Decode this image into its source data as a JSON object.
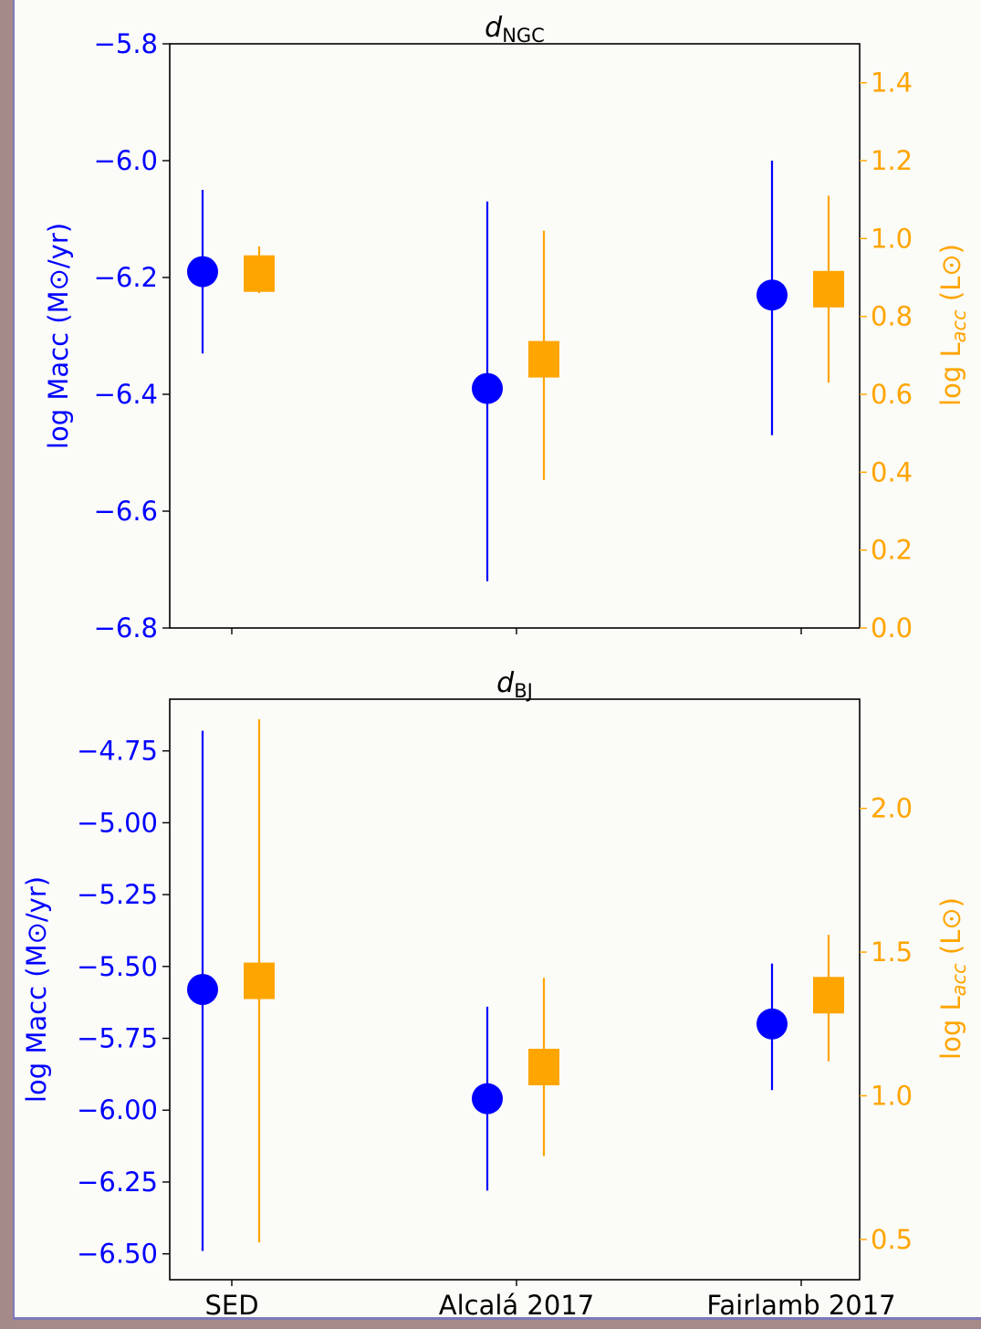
{
  "colors": {
    "macc": "#0000ff",
    "lacc": "#ffa500",
    "axis": "#000000"
  },
  "chart_data": [
    {
      "type": "scatter",
      "title_main": "d",
      "title_sub": "NGC",
      "categories": [
        "SED",
        "Alcalá 2017",
        "Fairlamb 2017"
      ],
      "left_axis": {
        "label": "log Macc (M⊙/yr)",
        "ylim": [
          -6.8,
          -5.8
        ],
        "ticks": [
          -6.8,
          -6.6,
          -6.4,
          -6.2,
          -6.0,
          -5.8
        ],
        "tick_labels": [
          "−6.8",
          "−6.6",
          "−6.4",
          "−6.2",
          "−6.0",
          "−5.8"
        ]
      },
      "right_axis": {
        "label_main": "log L",
        "label_sub": "acc",
        "label_tail": " (L⊙)",
        "ylim": [
          0.0,
          1.5
        ],
        "ticks": [
          0.0,
          0.2,
          0.4,
          0.6,
          0.8,
          1.0,
          1.2,
          1.4
        ],
        "tick_labels": [
          "0.0",
          "0.2",
          "0.4",
          "0.6",
          "0.8",
          "1.0",
          "1.2",
          "1.4"
        ]
      },
      "series": [
        {
          "name": "log Macc",
          "axis": "left",
          "marker": "circle",
          "values": [
            -6.19,
            -6.39,
            -6.23
          ],
          "err_low": [
            -6.33,
            -6.72,
            -6.47
          ],
          "err_high": [
            -6.05,
            -6.07,
            -6.0
          ]
        },
        {
          "name": "log Lacc",
          "axis": "right",
          "marker": "square",
          "values": [
            0.91,
            0.69,
            0.87
          ],
          "err_low": [
            0.86,
            0.38,
            0.63
          ],
          "err_high": [
            0.98,
            1.02,
            1.11
          ]
        }
      ]
    },
    {
      "type": "scatter",
      "title_main": "d",
      "title_sub": "BJ",
      "categories": [
        "SED",
        "Alcalá 2017",
        "Fairlamb 2017"
      ],
      "left_axis": {
        "label": "log Macc (M⊙/yr)",
        "ylim": [
          -6.59,
          -4.57
        ],
        "ticks": [
          -6.5,
          -6.25,
          -6.0,
          -5.75,
          -5.5,
          -5.25,
          -5.0,
          -4.75
        ],
        "tick_labels": [
          "−6.50",
          "−6.25",
          "−6.00",
          "−5.75",
          "−5.50",
          "−5.25",
          "−5.00",
          "−4.75"
        ]
      },
      "right_axis": {
        "label_main": "log L",
        "label_sub": "acc",
        "label_tail": " (L⊙)",
        "ylim": [
          0.36,
          2.38
        ],
        "ticks": [
          0.5,
          1.0,
          1.5,
          2.0
        ],
        "tick_labels": [
          "0.5",
          "1.0",
          "1.5",
          "2.0"
        ]
      },
      "series": [
        {
          "name": "log Macc",
          "axis": "left",
          "marker": "circle",
          "values": [
            -5.58,
            -5.96,
            -5.7
          ],
          "err_low": [
            -6.49,
            -6.28,
            -5.93
          ],
          "err_high": [
            -4.68,
            -5.64,
            -5.49
          ]
        },
        {
          "name": "log Lacc",
          "axis": "right",
          "marker": "square",
          "values": [
            1.4,
            1.1,
            1.35
          ],
          "err_low": [
            0.49,
            0.79,
            1.12
          ],
          "err_high": [
            2.31,
            1.41,
            1.56
          ]
        }
      ]
    }
  ]
}
